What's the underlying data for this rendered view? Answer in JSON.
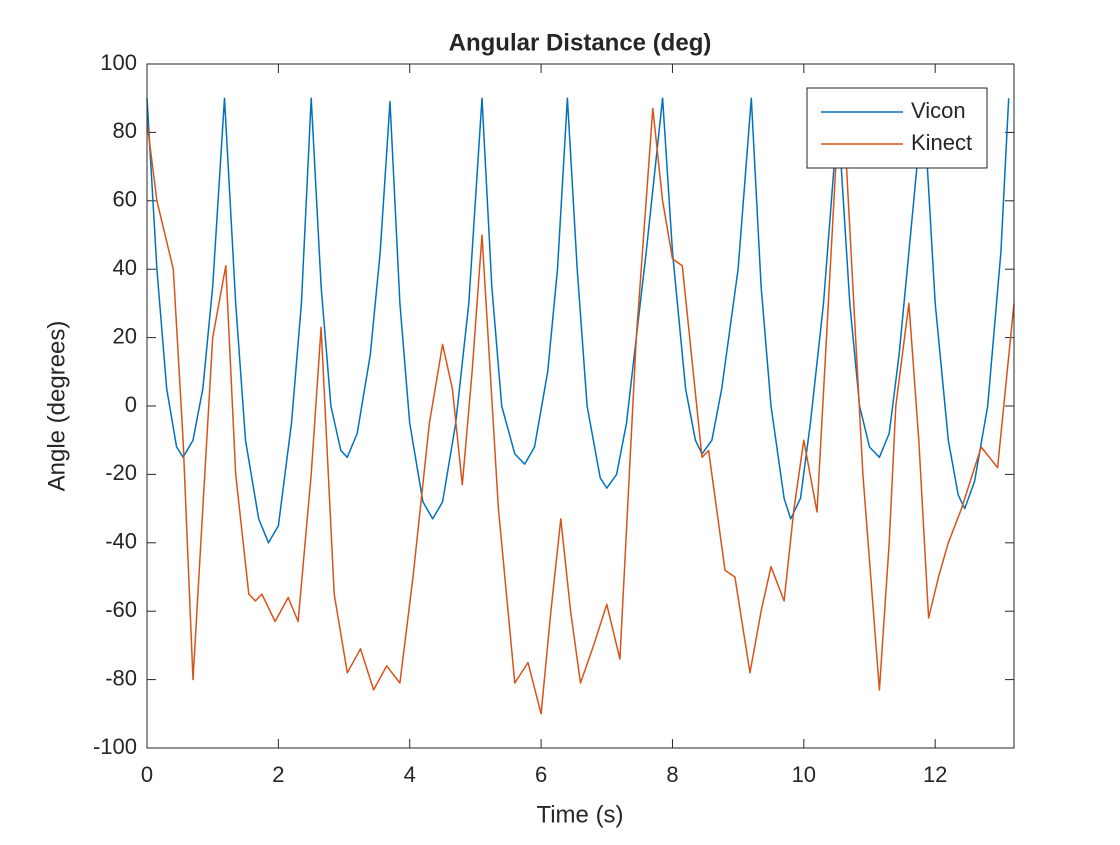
{
  "chart_data": {
    "type": "line",
    "title": "Angular Distance (deg)",
    "xlabel": "Time (s)",
    "ylabel": "Angle (degrees)",
    "xlim": [
      0,
      13.2
    ],
    "ylim": [
      -100,
      100
    ],
    "xticks": [
      0,
      2,
      4,
      6,
      8,
      10,
      12
    ],
    "yticks": [
      -100,
      -80,
      -60,
      -40,
      -20,
      0,
      20,
      40,
      60,
      80,
      100
    ],
    "legend_position": "upper right",
    "series": [
      {
        "name": "Vicon",
        "color": "#0072bd",
        "x": [
          0,
          0.15,
          0.3,
          0.45,
          0.55,
          0.7,
          0.85,
          1.0,
          1.18,
          1.35,
          1.5,
          1.7,
          1.85,
          2.0,
          2.2,
          2.35,
          2.5,
          2.65,
          2.8,
          2.95,
          3.05,
          3.2,
          3.4,
          3.55,
          3.7,
          3.85,
          4.0,
          4.2,
          4.35,
          4.5,
          4.7,
          4.9,
          5.1,
          5.25,
          5.4,
          5.6,
          5.75,
          5.9,
          6.1,
          6.25,
          6.4,
          6.55,
          6.7,
          6.9,
          7.0,
          7.15,
          7.3,
          7.45,
          7.6,
          7.85,
          8.0,
          8.2,
          8.35,
          8.45,
          8.6,
          8.75,
          9.0,
          9.2,
          9.35,
          9.5,
          9.7,
          9.8,
          9.95,
          10.1,
          10.3,
          10.52,
          10.7,
          10.85,
          11.0,
          11.15,
          11.3,
          11.45,
          11.6,
          11.82,
          12.0,
          12.2,
          12.35,
          12.45,
          12.6,
          12.8,
          13.0,
          13.12
        ],
        "values": [
          90,
          40,
          5,
          -12,
          -15,
          -10,
          5,
          35,
          90,
          30,
          -10,
          -33,
          -40,
          -35,
          -5,
          30,
          90,
          35,
          0,
          -13,
          -15,
          -8,
          15,
          45,
          89,
          30,
          -5,
          -28,
          -33,
          -28,
          -5,
          30,
          90,
          35,
          0,
          -14,
          -17,
          -12,
          10,
          40,
          90,
          40,
          0,
          -21,
          -24,
          -20,
          -5,
          20,
          45,
          90,
          45,
          5,
          -10,
          -14,
          -10,
          5,
          40,
          90,
          35,
          0,
          -27,
          -33,
          -27,
          -5,
          30,
          85,
          30,
          0,
          -12,
          -15,
          -8,
          15,
          45,
          90,
          30,
          -10,
          -26,
          -30,
          -22,
          0,
          45,
          90
        ]
      },
      {
        "name": "Kinect",
        "color": "#d95319",
        "x": [
          0,
          0.15,
          0.4,
          0.55,
          0.7,
          0.85,
          1.0,
          1.2,
          1.35,
          1.55,
          1.65,
          1.75,
          1.95,
          2.15,
          2.3,
          2.5,
          2.65,
          2.85,
          3.05,
          3.25,
          3.45,
          3.65,
          3.85,
          4.05,
          4.3,
          4.5,
          4.65,
          4.8,
          4.95,
          5.1,
          5.35,
          5.6,
          5.8,
          6.0,
          6.15,
          6.3,
          6.45,
          6.6,
          6.8,
          7.0,
          7.2,
          7.45,
          7.7,
          7.85,
          8.0,
          8.15,
          8.45,
          8.55,
          8.8,
          8.95,
          9.18,
          9.35,
          9.5,
          9.7,
          9.85,
          10.0,
          10.2,
          10.5,
          10.65,
          10.9,
          11.15,
          11.3,
          11.4,
          11.6,
          11.75,
          11.9,
          12.05,
          12.2,
          12.4,
          12.7,
          12.95,
          13.2
        ],
        "values": [
          83,
          60,
          40,
          -10,
          -80,
          -30,
          20,
          41,
          -20,
          -55,
          -57,
          -55,
          -63,
          -56,
          -63,
          -20,
          23,
          -55,
          -78,
          -71,
          -83,
          -76,
          -81,
          -50,
          -5,
          18,
          5,
          -23,
          10,
          50,
          -30,
          -81,
          -75,
          -90,
          -60,
          -33,
          -60,
          -81,
          -70,
          -58,
          -74,
          20,
          87,
          60,
          43,
          41,
          -15,
          -13,
          -48,
          -50,
          -78,
          -60,
          -47,
          -57,
          -30,
          -10,
          -31,
          75,
          70,
          -20,
          -83,
          -40,
          0,
          30,
          -10,
          -62,
          -50,
          -40,
          -30,
          -12,
          -18,
          30
        ]
      }
    ]
  }
}
